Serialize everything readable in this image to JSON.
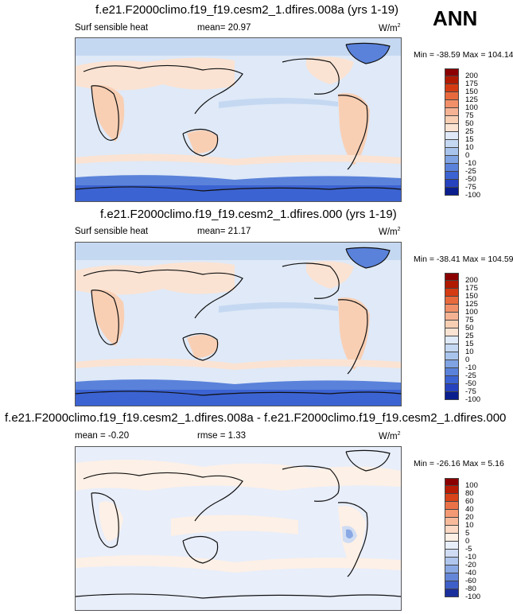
{
  "season": "ANN",
  "panels": [
    {
      "title": "f.e21.F2000climo.f19_f19.cesm2_1.dfires.008a (yrs 1-19)",
      "left_label": "Surf sensible heat",
      "mid_label": "mean=  20.97",
      "units": "W/m",
      "units_sup": "2",
      "minmax": "Min = -38.59 Max = 104.14",
      "levels": [
        "200",
        "175",
        "150",
        "125",
        "100",
        "75",
        "50",
        "25",
        "15",
        "10",
        "0",
        "-10",
        "-25",
        "-50",
        "-75",
        "-100"
      ],
      "colors": [
        "#8b0000",
        "#b01a00",
        "#d43b12",
        "#e86a3c",
        "#f19068",
        "#f6b394",
        "#f9cfb4",
        "#fbe3d3",
        "#dfe9f7",
        "#c5d8f2",
        "#a9c4ec",
        "#7fa3e3",
        "#5a82da",
        "#3c63d2",
        "#2742bf",
        "#0a1e8e"
      ]
    },
    {
      "title": "f.e21.F2000climo.f19_f19.cesm2_1.dfires.000 (yrs 1-19)",
      "left_label": "Surf sensible heat",
      "mid_label": "mean=  21.17",
      "units": "W/m",
      "units_sup": "2",
      "minmax": "Min = -38.41 Max = 104.59",
      "levels": [
        "200",
        "175",
        "150",
        "125",
        "100",
        "75",
        "50",
        "25",
        "15",
        "10",
        "0",
        "-10",
        "-25",
        "-50",
        "-75",
        "-100"
      ],
      "colors": [
        "#8b0000",
        "#b01a00",
        "#d43b12",
        "#e86a3c",
        "#f19068",
        "#f6b394",
        "#f9cfb4",
        "#fbe3d3",
        "#dfe9f7",
        "#c5d8f2",
        "#a9c4ec",
        "#7fa3e3",
        "#5a82da",
        "#3c63d2",
        "#2742bf",
        "#0a1e8e"
      ]
    },
    {
      "title": "f.e21.F2000climo.f19_f19.cesm2_1.dfires.008a - f.e21.F2000climo.f19_f19.cesm2_1.dfires.000",
      "left_label": "mean =  -0.20",
      "mid_label": "rmse =  1.33",
      "units": "W/m",
      "units_sup": "2",
      "minmax": "Min = -26.16 Max =  5.16",
      "levels": [
        "100",
        "80",
        "60",
        "40",
        "20",
        "10",
        "5",
        "0",
        "-5",
        "-10",
        "-20",
        "-40",
        "-60",
        "-80",
        "-100"
      ],
      "colors": [
        "#8b0000",
        "#b81c05",
        "#d8431a",
        "#ea7248",
        "#f39a74",
        "#f7bb9c",
        "#fbd9c4",
        "#fdf0e6",
        "#e8eefa",
        "#cfdcf3",
        "#b0c6ec",
        "#8aa8e3",
        "#6486d8",
        "#3f5fc8",
        "#1a2f9c"
      ]
    }
  ]
}
